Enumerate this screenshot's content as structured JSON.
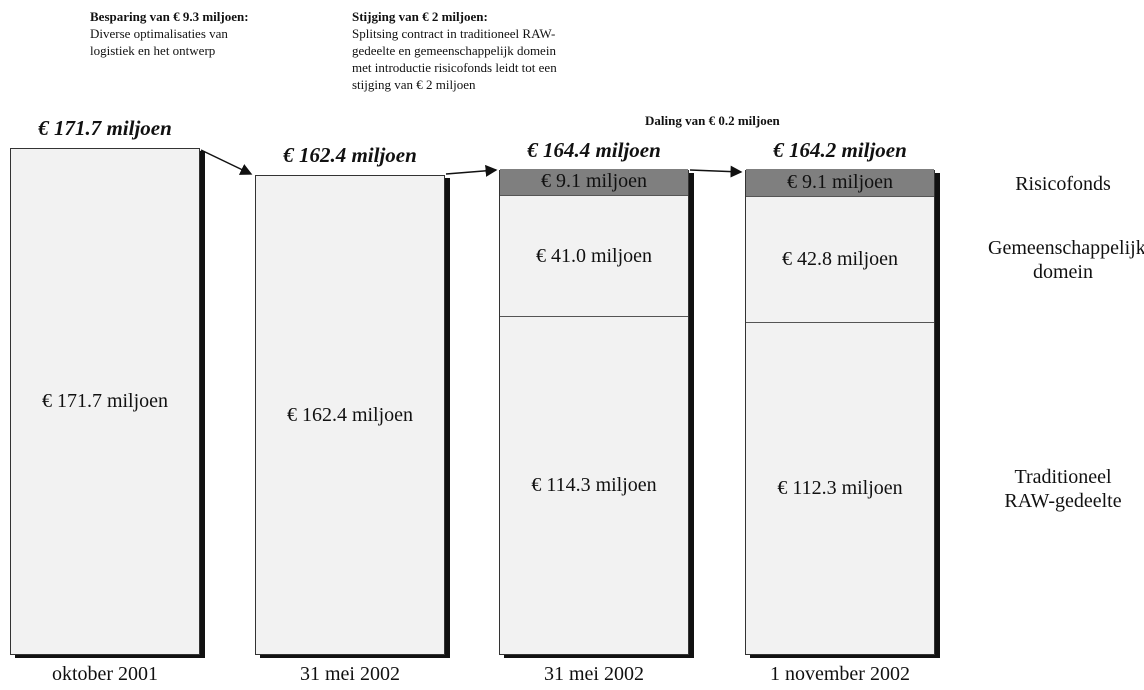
{
  "chart_data": {
    "type": "stacked-bar",
    "categories": [
      "oktober 2001",
      "31 mei 2002",
      "31 mei 2002",
      "1 november 2002"
    ],
    "totals": {
      "values": [
        171.7,
        162.4,
        164.4,
        164.2
      ],
      "value_labels": [
        "€ 171.7 miljoen",
        "€ 162.4 miljoen",
        "€ 164.4 miljoen",
        "€ 164.2 miljoen"
      ]
    },
    "series": [
      {
        "name": "Traditioneel RAW-gedeelte",
        "color": "#f2f2f2",
        "values": [
          null,
          null,
          114.3,
          112.3
        ],
        "value_labels": [
          null,
          null,
          "€ 114.3 miljoen",
          "€ 112.3 miljoen"
        ]
      },
      {
        "name": "Gemeenschappelijk domein",
        "color": "#f2f2f2",
        "values": [
          null,
          null,
          41.0,
          42.8
        ],
        "value_labels": [
          null,
          null,
          "€ 41.0 miljoen",
          "€ 42.8 miljoen"
        ]
      },
      {
        "name": "Risicofonds",
        "color": "#7f7f7f",
        "values": [
          null,
          null,
          9.1,
          9.1
        ],
        "value_labels": [
          null,
          null,
          "€ 9.1 miljoen",
          "€ 9.1 miljoen"
        ]
      }
    ],
    "annotations": [
      {
        "title": "Besparing van € 9.3 miljoen:",
        "lines": [
          "Diverse optimalisaties van",
          "logistiek en het ontwerp"
        ]
      },
      {
        "title": "Stijging van € 2 miljoen:",
        "lines": [
          "Splitsing contract in traditioneel RAW-",
          "gedeelte en gemeenschappelijk domein",
          "met introductie risicofonds leidt tot een",
          "stijging van € 2 miljoen"
        ]
      },
      {
        "title": "Daling van € 0.2 miljoen",
        "lines": []
      }
    ]
  }
}
